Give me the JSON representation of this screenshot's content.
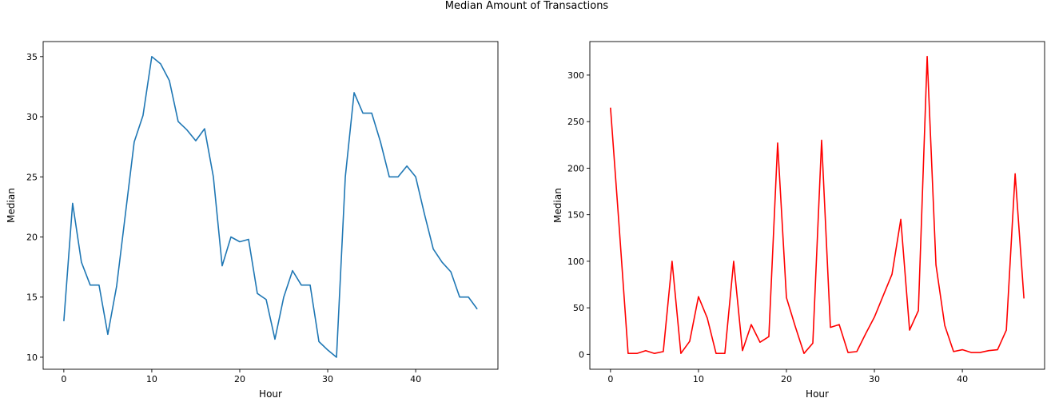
{
  "figure": {
    "suptitle": "Median Amount of Transactions"
  },
  "chart_data": [
    {
      "type": "line",
      "xlabel": "Hour",
      "ylabel": "Median",
      "xlim": [
        -2.35,
        49.35
      ],
      "ylim": [
        9.0,
        36.25
      ],
      "xticks": [
        0,
        10,
        20,
        30,
        40
      ],
      "yticks": [
        10,
        15,
        20,
        25,
        30,
        35
      ],
      "grid": false,
      "series": [
        {
          "color": "#1f77b4",
          "x": [
            0,
            1,
            2,
            3,
            4,
            5,
            6,
            7,
            8,
            9,
            10,
            11,
            12,
            13,
            14,
            15,
            16,
            17,
            18,
            19,
            20,
            21,
            22,
            23,
            24,
            25,
            26,
            27,
            28,
            29,
            30,
            31,
            32,
            33,
            34,
            35,
            36,
            37,
            38,
            39,
            40,
            41,
            42,
            43,
            44,
            45,
            46,
            47
          ],
          "y": [
            13.0,
            22.8,
            17.9,
            16.0,
            16.0,
            11.9,
            15.9,
            21.9,
            27.9,
            30.1,
            35.0,
            34.4,
            33.0,
            29.6,
            28.9,
            28.0,
            29.0,
            25.0,
            17.6,
            20.0,
            19.6,
            19.8,
            15.3,
            14.8,
            11.5,
            15.0,
            17.2,
            16.0,
            16.0,
            11.3,
            10.6,
            10.0,
            25.0,
            32.0,
            30.3,
            30.3,
            27.9,
            25.0,
            25.0,
            25.9,
            25.0,
            21.9,
            19.0,
            17.9,
            17.1,
            15.0,
            15.0,
            14.0
          ]
        }
      ]
    },
    {
      "type": "line",
      "xlabel": "Hour",
      "ylabel": "Median",
      "xlim": [
        -2.35,
        49.35
      ],
      "ylim": [
        -16.0,
        336.0
      ],
      "xticks": [
        0,
        10,
        20,
        30,
        40
      ],
      "yticks": [
        0,
        50,
        100,
        150,
        200,
        250,
        300
      ],
      "grid": false,
      "series": [
        {
          "color": "#ff0000",
          "x": [
            0,
            1,
            2,
            3,
            4,
            5,
            6,
            7,
            8,
            9,
            10,
            11,
            12,
            13,
            14,
            15,
            16,
            17,
            18,
            19,
            20,
            21,
            22,
            23,
            24,
            25,
            26,
            27,
            28,
            29,
            30,
            31,
            32,
            33,
            34,
            35,
            36,
            37,
            38,
            39,
            40,
            41,
            42,
            43,
            44,
            45,
            46,
            47
          ],
          "y": [
            265,
            135,
            1,
            1,
            4,
            1,
            3,
            100,
            1,
            14,
            62,
            39,
            1,
            1,
            100,
            4,
            32,
            13,
            19,
            227,
            61,
            30,
            1,
            12,
            230,
            29,
            32,
            2,
            3,
            22,
            40,
            63,
            86,
            145,
            26,
            47,
            320,
            96,
            31,
            3,
            5,
            2,
            2,
            4,
            5,
            26,
            194,
            60
          ]
        }
      ]
    }
  ]
}
